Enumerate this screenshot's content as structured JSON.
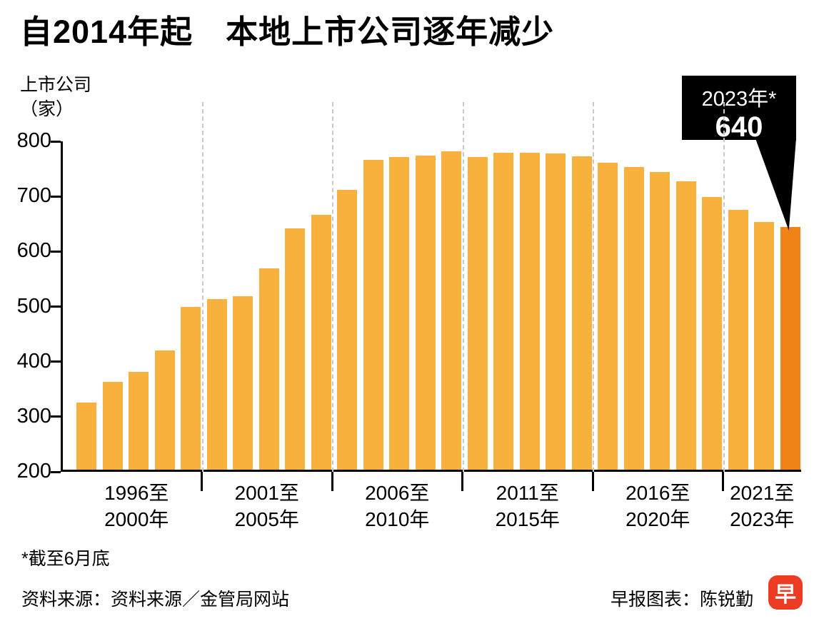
{
  "title": "自2014年起　本地上市公司逐年减少",
  "y_axis": {
    "label_line1": "上市公司",
    "label_line2": "（家）"
  },
  "callout": {
    "label": "2023年*",
    "value": "640"
  },
  "footnote": "*截至6月底",
  "footer": {
    "source": "资料来源：资料来源／金管局网站",
    "credit": "早报图表：陈锐勤",
    "logo_char": "早"
  },
  "colors": {
    "bar": "#F8B13C",
    "bar_highlight": "#F08318",
    "callout_bg": "#000000",
    "separator": "#C9C9C9",
    "axis": "#000000",
    "logo_red": "#EE3B24"
  },
  "chart_data": {
    "type": "bar",
    "title": "自2014年起 本地上市公司逐年减少",
    "ylabel": "上市公司（家）",
    "xlabel": "",
    "x": [
      1996,
      1997,
      1998,
      1999,
      2000,
      2001,
      2002,
      2003,
      2004,
      2005,
      2006,
      2007,
      2008,
      2009,
      2010,
      2011,
      2012,
      2013,
      2014,
      2015,
      2016,
      2017,
      2018,
      2019,
      2020,
      2021,
      2022,
      2023
    ],
    "values": [
      322,
      360,
      378,
      416,
      495,
      510,
      515,
      565,
      638,
      663,
      708,
      762,
      767,
      770,
      778,
      768,
      775,
      776,
      774,
      769,
      757,
      750,
      741,
      723,
      695,
      672,
      650,
      640
    ],
    "ylim": [
      200,
      800
    ],
    "yticks": [
      200,
      300,
      400,
      500,
      600,
      700,
      800
    ],
    "highlight_index": 27,
    "annotation": {
      "x": 2023,
      "text": "2023年*",
      "value": 640
    },
    "grid": "dashed vertical separators between 5-year groups",
    "legend": "none",
    "groups": [
      {
        "label_line1": "1996至",
        "label_line2": "2000年",
        "size": 5
      },
      {
        "label_line1": "2001至",
        "label_line2": "2005年",
        "size": 5
      },
      {
        "label_line1": "2006至",
        "label_line2": "2010年",
        "size": 5
      },
      {
        "label_line1": "2011至",
        "label_line2": "2015年",
        "size": 5
      },
      {
        "label_line1": "2016至",
        "label_line2": "2020年",
        "size": 5
      },
      {
        "label_line1": "2021至",
        "label_line2": "2023年",
        "size": 3
      }
    ]
  }
}
